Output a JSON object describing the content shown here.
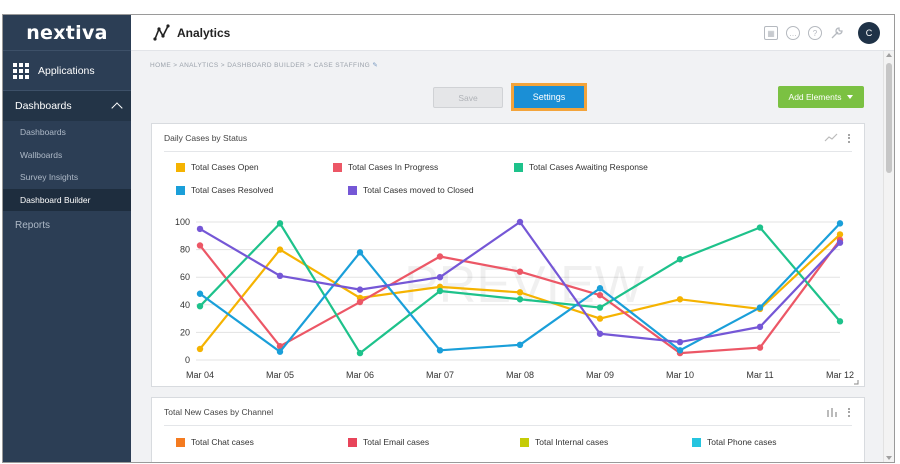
{
  "brand": "nextiva",
  "sidebar": {
    "applications_label": "Applications",
    "dashboards_header": "Dashboards",
    "items": [
      {
        "label": "Dashboards"
      },
      {
        "label": "Wallboards"
      },
      {
        "label": "Survey Insights"
      },
      {
        "label": "Dashboard Builder"
      }
    ],
    "reports_label": "Reports"
  },
  "header": {
    "title": "Analytics",
    "avatar_initial": "C"
  },
  "breadcrumb": "HOME > ANALYTICS > DASHBOARD BUILDER > CASE STAFFING",
  "toolbar": {
    "save_label": "Save",
    "settings_label": "Settings",
    "add_label": "Add Elements"
  },
  "watermark": "PREVIEW",
  "colors": {
    "open": "#f5b301",
    "progress": "#ec5766",
    "awaiting": "#1ec28b",
    "resolved": "#1a9fd9",
    "closed": "#7557d6",
    "chat": "#f47b20",
    "email": "#e8445a",
    "internal": "#c5cc06",
    "phone": "#25c4df"
  },
  "card1": {
    "title": "Daily Cases by Status",
    "legend": [
      {
        "label": "Total Cases Open",
        "color": "#f5b301"
      },
      {
        "label": "Total Cases In Progress",
        "color": "#ec5766"
      },
      {
        "label": "Total Cases Awaiting Response",
        "color": "#1ec28b"
      },
      {
        "label": "Total Cases Resolved",
        "color": "#1a9fd9"
      },
      {
        "label": "Total Cases moved to Closed",
        "color": "#7557d6"
      }
    ]
  },
  "card2": {
    "title": "Total New Cases by Channel",
    "legend": [
      {
        "label": "Total Chat cases",
        "color": "#f47b20"
      },
      {
        "label": "Total Email cases",
        "color": "#e8445a"
      },
      {
        "label": "Total Internal cases",
        "color": "#c5cc06"
      },
      {
        "label": "Total Phone cases",
        "color": "#25c4df"
      }
    ]
  },
  "chart_data": {
    "type": "line",
    "title": "Daily Cases by Status",
    "categories": [
      "Mar 04",
      "Mar 05",
      "Mar 06",
      "Mar 07",
      "Mar 08",
      "Mar 09",
      "Mar 10",
      "Mar 11",
      "Mar 12"
    ],
    "ylim": [
      0,
      100
    ],
    "yticks": [
      0,
      20,
      40,
      60,
      80,
      100
    ],
    "series": [
      {
        "name": "Total Cases Open",
        "color": "#f5b301",
        "values": [
          8,
          80,
          45,
          53,
          49,
          30,
          44,
          37,
          91
        ]
      },
      {
        "name": "Total Cases In Progress",
        "color": "#ec5766",
        "values": [
          83,
          10,
          42,
          75,
          64,
          47,
          5,
          9,
          87
        ]
      },
      {
        "name": "Total Cases Awaiting Response",
        "color": "#1ec28b",
        "values": [
          39,
          99,
          5,
          50,
          44,
          38,
          73,
          96,
          28
        ]
      },
      {
        "name": "Total Cases Resolved",
        "color": "#1a9fd9",
        "values": [
          48,
          6,
          78,
          7,
          11,
          52,
          7,
          38,
          99
        ]
      },
      {
        "name": "Total Cases moved to Closed",
        "color": "#7557d6",
        "values": [
          95,
          61,
          51,
          60,
          100,
          19,
          13,
          24,
          85
        ]
      }
    ]
  }
}
